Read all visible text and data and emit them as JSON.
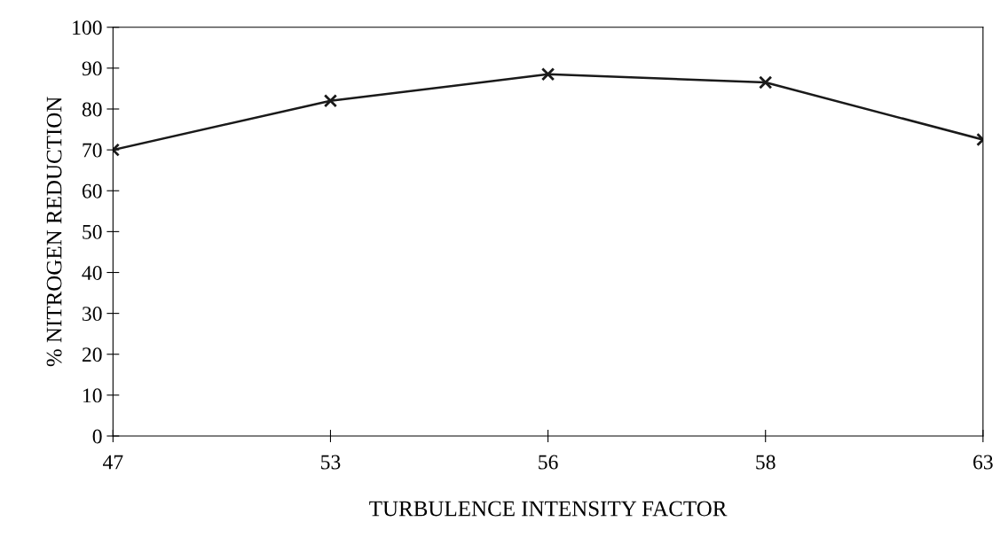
{
  "chart_data": {
    "type": "line",
    "xlabel": "TURBULENCE INTENSITY FACTOR",
    "ylabel": "% NITROGEN REDUCTION",
    "categories": [
      "47",
      "53",
      "56",
      "58",
      "63"
    ],
    "series": [
      {
        "color": "#1a1a1a",
        "values": [
          70,
          82,
          88.5,
          86.5,
          72.5
        ]
      }
    ],
    "ylim": [
      0,
      100
    ],
    "yticks": [
      0,
      10,
      20,
      30,
      40,
      50,
      60,
      70,
      80,
      90,
      100
    ],
    "grid": false,
    "legend": false,
    "marker": "cross",
    "line_style": "solid"
  }
}
